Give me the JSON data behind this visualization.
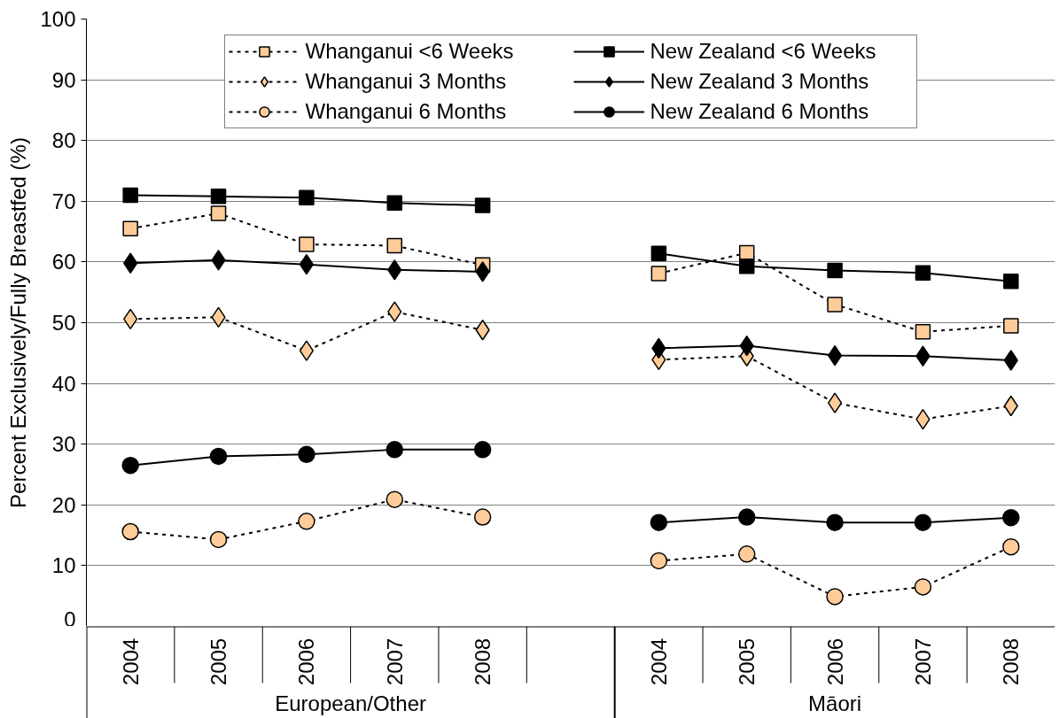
{
  "chart_data": {
    "type": "line",
    "ylabel": "Percent Exclusively/Fully Breastfed (%)",
    "categories": [
      "2004",
      "2005",
      "2006",
      "2007",
      "2008",
      null,
      "2004",
      "2005",
      "2006",
      "2007",
      "2008"
    ],
    "annotations": [
      "European/Other",
      "Māori"
    ],
    "ylim": [
      0,
      100
    ],
    "yticks": [
      0,
      10,
      20,
      30,
      40,
      50,
      60,
      70,
      80,
      90,
      100
    ],
    "grid": "y",
    "legend": "top",
    "series": [
      {
        "name": "Whanganui <6 Weeks",
        "color": "#ffcc99",
        "marker": "square",
        "line_style": "dotted",
        "values": [
          65.5,
          68.0,
          62.9,
          62.7,
          59.5,
          null,
          58.1,
          61.5,
          53.0,
          48.5,
          49.5
        ]
      },
      {
        "name": "Whanganui 3 Months",
        "color": "#ffcc99",
        "marker": "diamond",
        "line_style": "dotted",
        "values": [
          50.6,
          50.9,
          45.4,
          51.8,
          48.8,
          null,
          43.9,
          44.5,
          36.8,
          34.1,
          36.3
        ]
      },
      {
        "name": "Whanganui 6 Months",
        "color": "#ffcc99",
        "marker": "circle",
        "line_style": "dotted",
        "values": [
          15.6,
          14.3,
          17.3,
          20.9,
          18.0,
          null,
          10.8,
          11.9,
          4.9,
          6.5,
          13.1
        ]
      },
      {
        "name": "New Zealand <6 Weeks",
        "color": "#000000",
        "marker": "square",
        "line_style": "solid",
        "values": [
          71.0,
          70.8,
          70.6,
          69.7,
          69.3,
          null,
          61.4,
          59.3,
          58.6,
          58.2,
          56.8
        ]
      },
      {
        "name": "New Zealand 3 Months",
        "color": "#000000",
        "marker": "diamond",
        "line_style": "solid",
        "values": [
          59.8,
          60.3,
          59.6,
          58.7,
          58.4,
          null,
          45.8,
          46.2,
          44.6,
          44.5,
          43.8
        ]
      },
      {
        "name": "New Zealand 6 Months",
        "color": "#000000",
        "marker": "circle",
        "line_style": "solid",
        "values": [
          26.5,
          28.0,
          28.3,
          29.1,
          29.1,
          null,
          17.1,
          18.0,
          17.1,
          17.1,
          17.9
        ]
      }
    ]
  }
}
